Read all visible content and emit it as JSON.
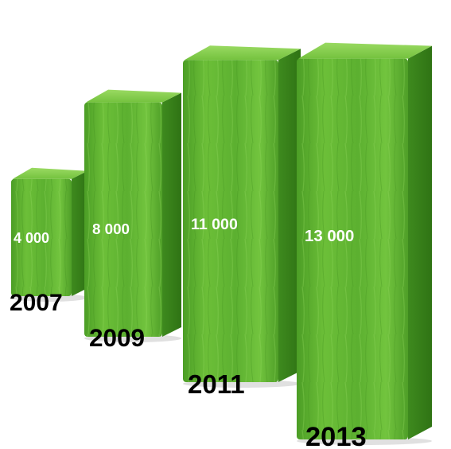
{
  "chart_data": {
    "type": "bar",
    "categories": [
      "2007",
      "2009",
      "2011",
      "2013"
    ],
    "values": [
      4000,
      8000,
      11000,
      13000
    ],
    "value_labels": [
      "4 000",
      "8 000",
      "11 000",
      "13 000"
    ],
    "title": "",
    "xlabel": "",
    "ylabel": "",
    "grid": false,
    "style": "3d-textured-columns",
    "colors": {
      "front": "#5cb030",
      "front_light": "#7ccc44",
      "side": "#3f8a1f",
      "top": "#86d24e",
      "value_text": "#ffffff",
      "year_text": "#000000"
    }
  }
}
